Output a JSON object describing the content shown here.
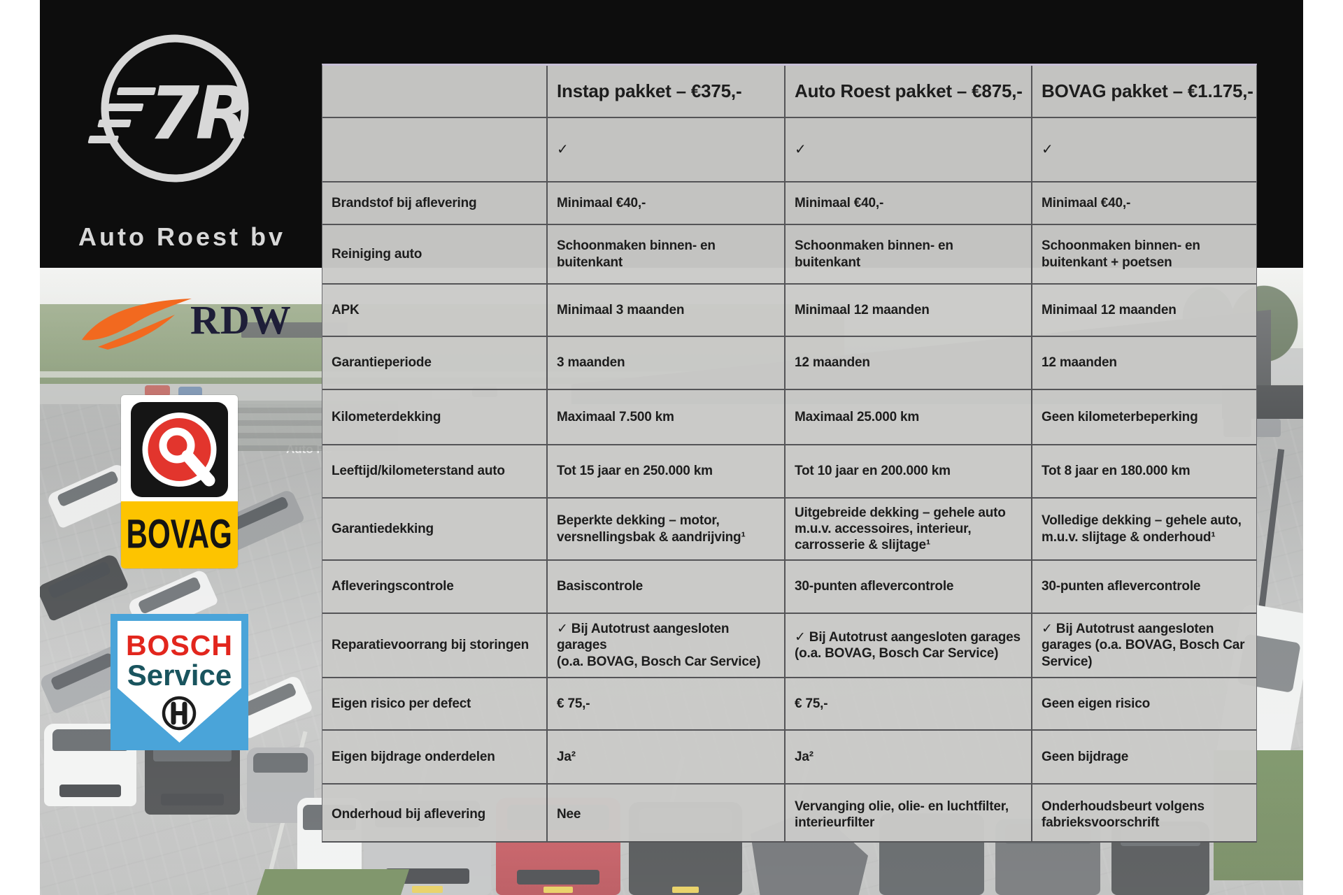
{
  "branding": {
    "company_name": "Auto Roest bv"
  },
  "partner_logos": {
    "rdw_text": "RDW",
    "bovag_text": "BOVAG",
    "bosch_line1": "BOSCH",
    "bosch_line2": "Service"
  },
  "photo": {
    "building_sign": "Auto Ro"
  },
  "table": {
    "header": {
      "row_label": "",
      "packages": [
        "Instap pakket – €375,-",
        "Auto Roest pakket – €875,-",
        "BOVAG pakket – €1.175,-"
      ]
    },
    "included_row": {
      "label": "",
      "values": [
        "✓",
        "✓",
        "✓"
      ]
    },
    "rows": [
      {
        "label": "Brandstof bij aflevering",
        "values": [
          "Minimaal €40,-",
          "Minimaal €40,-",
          "Minimaal €40,-"
        ]
      },
      {
        "label": "Reiniging auto",
        "values": [
          "Schoonmaken binnen- en\nbuitenkant",
          "Schoonmaken binnen- en\nbuitenkant",
          "Schoonmaken binnen- en\nbuitenkant + poetsen"
        ]
      },
      {
        "label": "APK",
        "values": [
          "Minimaal 3 maanden",
          "Minimaal 12 maanden",
          "Minimaal 12 maanden"
        ]
      },
      {
        "label": "Garantieperiode",
        "values": [
          "3 maanden",
          "12 maanden",
          "12 maanden"
        ]
      },
      {
        "label": "Kilometerdekking",
        "values": [
          "Maximaal 7.500 km",
          "Maximaal 25.000 km",
          "Geen kilometerbeperking"
        ]
      },
      {
        "label": "Leeftijd/kilometerstand auto",
        "values": [
          "Tot 15 jaar en 250.000 km",
          "Tot 10 jaar en 200.000 km",
          "Tot 8 jaar en 180.000 km"
        ]
      },
      {
        "label": "Garantiedekking",
        "values": [
          "Beperkte dekking – motor,\nversnellingsbak & aandrijving¹",
          "Uitgebreide dekking – gehele auto\nm.u.v. accessoires, interieur,\ncarrosserie & slijtage¹",
          "Volledige dekking – gehele auto,\nm.u.v. slijtage & onderhoud¹"
        ]
      },
      {
        "label": "Afleveringscontrole",
        "values": [
          "Basiscontrole",
          "30-punten aflevercontrole",
          "30-punten aflevercontrole"
        ]
      },
      {
        "label": "Reparatievoorrang bij storingen",
        "values": [
          "✓ Bij Autotrust aangesloten garages\n(o.a. BOVAG, Bosch Car Service)",
          "✓ Bij Autotrust aangesloten garages\n(o.a. BOVAG, Bosch Car Service)",
          "✓ Bij Autotrust aangesloten\ngarages (o.a. BOVAG, Bosch Car\nService)"
        ]
      },
      {
        "label": "Eigen risico per defect",
        "values": [
          "€ 75,-",
          "€ 75,-",
          "Geen eigen risico"
        ]
      },
      {
        "label": "Eigen bijdrage onderdelen",
        "values": [
          "Ja²",
          "Ja²",
          "Geen bijdrage"
        ]
      },
      {
        "label": "Onderhoud bij aflevering",
        "values": [
          "Nee",
          "Vervanging olie, olie- en luchtfilter,\ninterieurfilter",
          "Onderhoudsbeurt volgens\nfabrieksvoorschrift"
        ]
      }
    ]
  },
  "colors": {
    "band": "#0d0d0d",
    "table_bg": "#cacac8",
    "grid_line": "#545457",
    "table_top_edge": "#c7bfd6",
    "text": "#1d1d1d",
    "rdw_orange": "#f2691f",
    "rdw_text": "#1e1e38",
    "bovag_red": "#e2352d",
    "bovag_yellow": "#fdc400",
    "bosch_blue": "#4aa4d9",
    "bosch_red": "#e2261d",
    "bosch_teal": "#19545e",
    "brand_gray": "#d8d8d8"
  }
}
